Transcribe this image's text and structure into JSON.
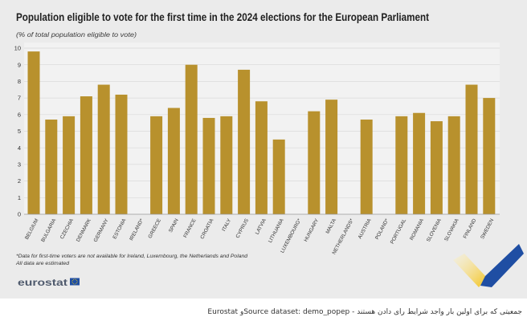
{
  "page": {
    "background_color": "#ffffff",
    "panel_color": "#ebebeb",
    "plot_color": "#f2f2f2",
    "grid_color": "#d9d9d9",
    "axis_color": "#9a9a9a"
  },
  "chart_data": {
    "type": "bar",
    "title": "Population eligible to vote for the first time in the 2024 elections for the European Parliament",
    "subtitle": "(% of total population eligible to vote)",
    "xlabel": "",
    "ylabel": "",
    "categories": [
      "BELGIUM",
      "BULGARIA",
      "CZECHIA",
      "DENMARK",
      "GERMANY",
      "ESTONIA",
      "IRELAND*",
      "GREECE",
      "SPAIN",
      "FRANCE",
      "CROATIA",
      "ITALY",
      "CYPRUS",
      "LATVIA",
      "LITHUANIA",
      "LUXEMBOURG*",
      "HUNGARY",
      "MALTA",
      "NETHERLANDS*",
      "AUSTRIA",
      "POLAND*",
      "PORTUGAL",
      "ROMANIA",
      "SLOVENIA",
      "SLOVAKIA",
      "FINLAND",
      "SWEDEN"
    ],
    "values": [
      9.8,
      5.7,
      5.9,
      7.1,
      7.8,
      7.2,
      null,
      5.9,
      6.4,
      9.0,
      5.8,
      5.9,
      8.7,
      6.8,
      4.5,
      null,
      6.2,
      6.9,
      null,
      5.7,
      null,
      5.9,
      6.1,
      5.6,
      5.9,
      7.8,
      7.0
    ],
    "ylim": [
      0,
      10
    ],
    "yticks": [
      0,
      1,
      2,
      3,
      4,
      5,
      6,
      7,
      8,
      9,
      10
    ],
    "grid": true,
    "legend": "none",
    "bar_color": "#b8912d",
    "footnotes": [
      "*Data for first-time voters are not available for Ireland, Luxembourg, the Netherlands and Poland",
      "All data are estimated"
    ]
  },
  "branding": {
    "logo_text": "eurostat",
    "flag_color": "#1f4ea3",
    "star_color": "#ffd200",
    "accent_yellow": "#f2c21b",
    "accent_blue": "#1f4ea3"
  },
  "caption": {
    "text": "Eurostat وSource dataset: demo_popep - جمعیتی که برای اولین بار واجد شرایط رای دادن هستند"
  }
}
